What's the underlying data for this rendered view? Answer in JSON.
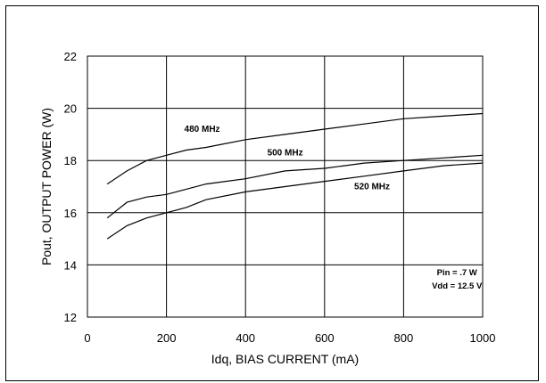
{
  "chart_data": {
    "type": "line",
    "title": "",
    "xlabel": "Idq, BIAS CURRENT  (mA)",
    "ylabel": "Pout, OUTPUT POWER  (W)",
    "xlim": [
      0,
      1000
    ],
    "ylim": [
      12,
      22
    ],
    "x_ticks": [
      0,
      200,
      400,
      600,
      800,
      1000
    ],
    "y_ticks": [
      12,
      14,
      16,
      18,
      20,
      22
    ],
    "grid": true,
    "series": [
      {
        "name": "480 MHz",
        "x": [
          50,
          100,
          150,
          200,
          250,
          300,
          400,
          500,
          600,
          700,
          800,
          900,
          1000
        ],
        "y": [
          17.1,
          17.6,
          18.0,
          18.2,
          18.4,
          18.5,
          18.8,
          19.0,
          19.2,
          19.4,
          19.6,
          19.7,
          19.8
        ]
      },
      {
        "name": "500 MHz",
        "x": [
          50,
          100,
          150,
          200,
          250,
          300,
          400,
          500,
          600,
          700,
          800,
          900,
          1000
        ],
        "y": [
          15.8,
          16.4,
          16.6,
          16.7,
          16.9,
          17.1,
          17.3,
          17.6,
          17.7,
          17.9,
          18.0,
          18.1,
          18.2
        ]
      },
      {
        "name": "520 MHz",
        "x": [
          50,
          100,
          150,
          200,
          250,
          300,
          400,
          500,
          600,
          700,
          800,
          900,
          1000
        ],
        "y": [
          15.0,
          15.5,
          15.8,
          16.0,
          16.2,
          16.5,
          16.8,
          17.0,
          17.2,
          17.4,
          17.6,
          17.8,
          17.9
        ]
      }
    ],
    "annotations": [
      "Pin = .7 W",
      "Vdd = 12.5 V"
    ]
  }
}
